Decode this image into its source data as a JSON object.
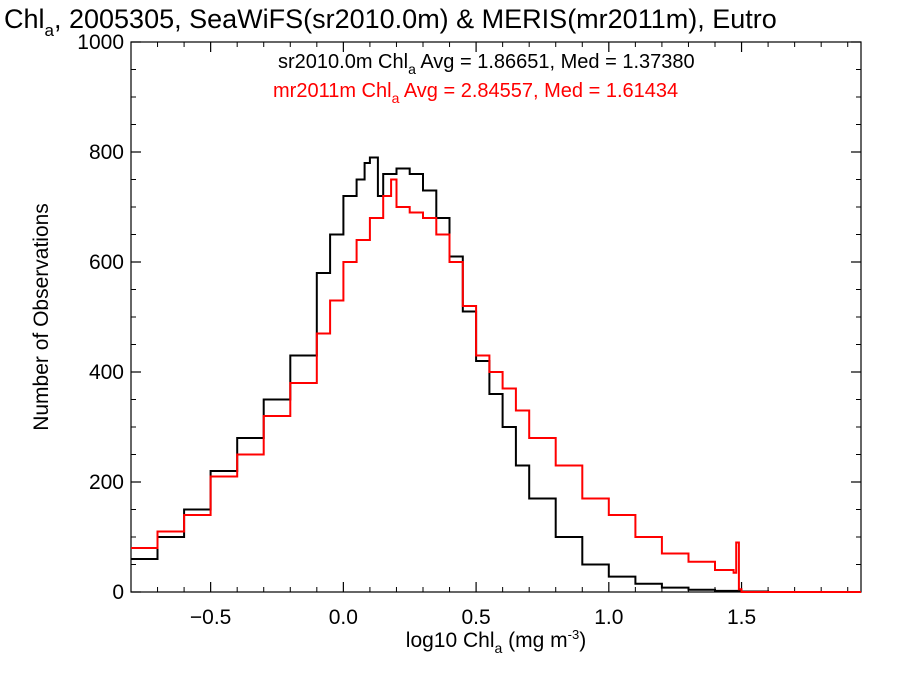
{
  "chart_data": {
    "type": "histogram-step",
    "title": {
      "main": "Chl",
      "sub": "a",
      "rest": ", 2005305, SeaWiFS(sr2010.0m) & MERIS(mr2011m), Eutro"
    },
    "xlabel": {
      "pre": "log10 Chl",
      "sub": "a",
      "mid": " (mg m",
      "sup": "-3",
      "post": ")"
    },
    "ylabel": "Number of Observations",
    "xlim": [
      -0.8,
      1.95
    ],
    "ylim": [
      0,
      1000
    ],
    "x_ticks": [
      {
        "value": -0.5,
        "label": "−0.5"
      },
      {
        "value": 0.0,
        "label": "0.0"
      },
      {
        "value": 0.5,
        "label": "0.5"
      },
      {
        "value": 1.0,
        "label": "1.0"
      },
      {
        "value": 1.5,
        "label": "1.5"
      }
    ],
    "y_ticks": [
      {
        "value": 0,
        "label": "0"
      },
      {
        "value": 200,
        "label": "200"
      },
      {
        "value": 400,
        "label": "400"
      },
      {
        "value": 600,
        "label": "600"
      },
      {
        "value": 800,
        "label": "800"
      },
      {
        "value": 1000,
        "label": "1000"
      }
    ],
    "legend_placement": "top-center",
    "series": [
      {
        "label_pre": "sr2010.0m Chl",
        "label_sub": "a",
        "label_post": " Avg = 1.86651, Med = 1.37380",
        "color": "#000000",
        "x": [
          -0.8,
          -0.7,
          -0.6,
          -0.5,
          -0.4,
          -0.3,
          -0.2,
          -0.1,
          -0.05,
          0.0,
          0.05,
          0.08,
          0.1,
          0.13,
          0.15,
          0.2,
          0.25,
          0.3,
          0.35,
          0.4,
          0.45,
          0.5,
          0.55,
          0.6,
          0.65,
          0.7,
          0.8,
          0.9,
          1.0,
          1.1,
          1.2,
          1.3,
          1.4,
          1.5,
          1.6,
          1.7,
          1.8,
          1.95
        ],
        "y": [
          60,
          100,
          150,
          220,
          280,
          350,
          430,
          580,
          650,
          720,
          750,
          780,
          790,
          720,
          760,
          770,
          760,
          730,
          680,
          610,
          510,
          420,
          360,
          300,
          230,
          170,
          100,
          50,
          28,
          15,
          8,
          4,
          2,
          1,
          0,
          0,
          0,
          0
        ]
      },
      {
        "label_pre": "mr2011m Chl",
        "label_sub": "a",
        "label_post": " Avg = 2.84557, Med = 1.61434",
        "color": "#ff0000",
        "x": [
          -0.8,
          -0.7,
          -0.6,
          -0.5,
          -0.4,
          -0.3,
          -0.2,
          -0.1,
          -0.05,
          0.0,
          0.05,
          0.1,
          0.15,
          0.18,
          0.2,
          0.25,
          0.3,
          0.35,
          0.4,
          0.45,
          0.5,
          0.55,
          0.6,
          0.65,
          0.7,
          0.8,
          0.9,
          1.0,
          1.1,
          1.2,
          1.3,
          1.4,
          1.47,
          1.48,
          1.49,
          1.5,
          1.6,
          1.7,
          1.8,
          1.95
        ],
        "y": [
          80,
          110,
          140,
          210,
          250,
          320,
          380,
          470,
          530,
          600,
          640,
          680,
          720,
          750,
          700,
          690,
          680,
          650,
          600,
          520,
          430,
          400,
          370,
          330,
          280,
          230,
          170,
          140,
          100,
          70,
          55,
          40,
          35,
          90,
          5,
          0,
          0,
          0,
          0,
          0
        ]
      }
    ]
  }
}
